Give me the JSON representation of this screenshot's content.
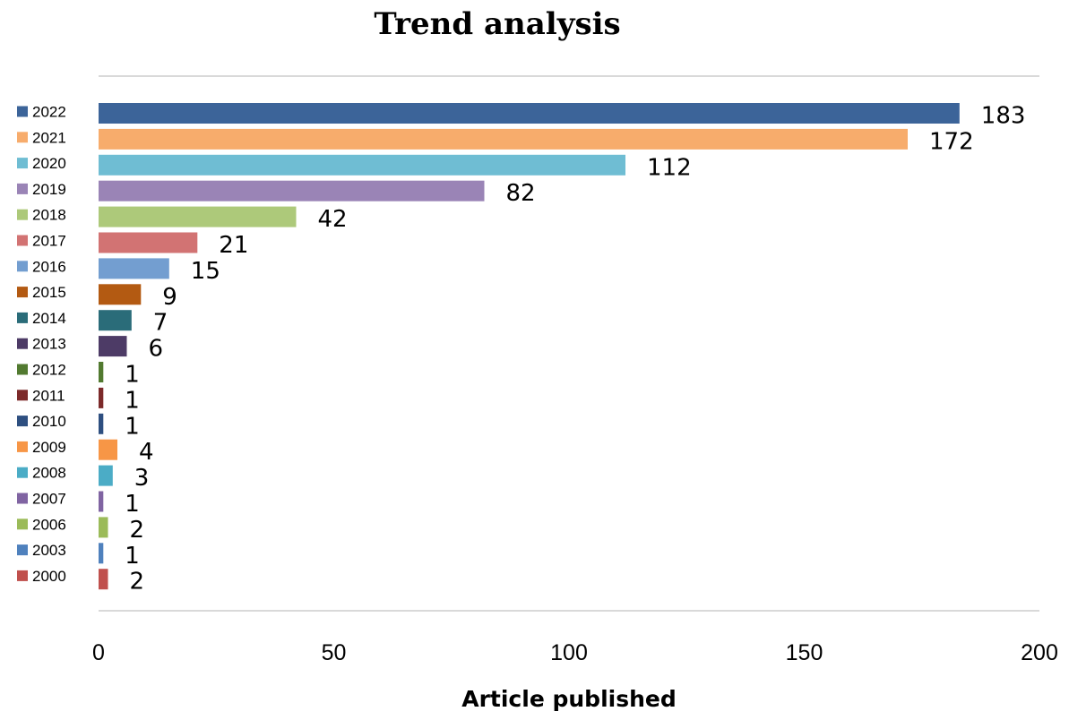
{
  "chart_data": {
    "type": "bar",
    "orientation": "horizontal",
    "title": "Trend analysis",
    "xlabel": "Article published",
    "ylabel": "",
    "xlim": [
      0,
      200
    ],
    "xticks": [
      "0",
      "50",
      "100",
      "150",
      "200"
    ],
    "grid": false,
    "legend": "left",
    "categories": [
      "2022",
      "2021",
      "2020",
      "2019",
      "2018",
      "2017",
      "2016",
      "2015",
      "2014",
      "2013",
      "2012",
      "2011",
      "2010",
      "2009",
      "2008",
      "2007",
      "2006",
      "2003",
      "2000"
    ],
    "values": [
      183,
      172,
      112,
      82,
      42,
      21,
      15,
      9,
      7,
      6,
      1,
      1,
      1,
      4,
      3,
      1,
      2,
      1,
      2
    ],
    "colors": [
      "#3c6499",
      "#f7ac6c",
      "#6fbdd3",
      "#9a84b6",
      "#adc97a",
      "#d27373",
      "#739ed0",
      "#b35a12",
      "#2a6c79",
      "#4d3b66",
      "#527a30",
      "#7c2a2a",
      "#2e4f80",
      "#f79646",
      "#4bacc6",
      "#8064a2",
      "#9bbb59",
      "#4f81bd",
      "#c0504d"
    ]
  }
}
